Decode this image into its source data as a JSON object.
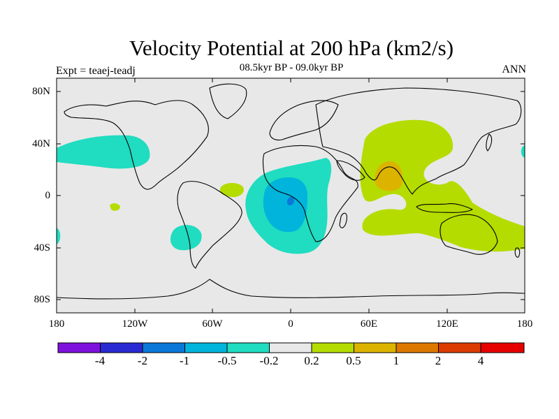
{
  "title": "Velocity Potential at 200 hPa (km2/s)",
  "subtitle": "08.5kyr BP - 09.0kyr BP",
  "left_label": "Expt = teaej-teadj",
  "right_label": "ANN",
  "axes": {
    "y_ticks": [
      "80N",
      "40N",
      "0",
      "40S",
      "80S"
    ],
    "x_ticks": [
      "180",
      "120W",
      "60W",
      "0",
      "60E",
      "120E",
      "180"
    ]
  },
  "colorbar": {
    "labels": [
      "-4",
      "-2",
      "-1",
      "-0.5",
      "-0.2",
      "0.2",
      "0.5",
      "1",
      "2",
      "4"
    ],
    "colors": [
      "#7d12dc",
      "#2a2ad2",
      "#0a78d8",
      "#00b4dc",
      "#20dcc0",
      "#e8e8e8",
      "#b4dc00",
      "#dcb400",
      "#dc7800",
      "#dc3c00",
      "#e60000"
    ]
  },
  "colors": {
    "land_ocean_bg": "#e8e8e8",
    "coast": "#000000"
  }
}
